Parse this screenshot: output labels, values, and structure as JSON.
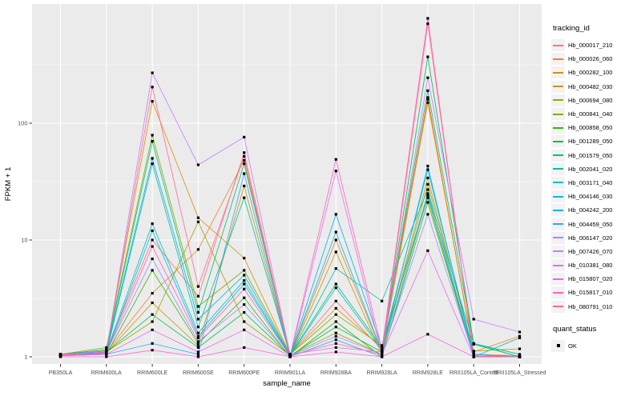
{
  "chart_data": {
    "type": "line",
    "title": "",
    "xlabel": "sample_name",
    "ylabel": "FPKM + 1",
    "yscale": "log10",
    "ylim": [
      0.9,
      1100
    ],
    "yticks": [
      1,
      10,
      100
    ],
    "ytick_labels": [
      "1",
      "10",
      "100"
    ],
    "grid": true,
    "legend_position": "right",
    "legend_title": "tracking_id",
    "quant_legend": {
      "title": "quant_status",
      "item_label": "OK"
    },
    "panel_bg": "#EBEBEB",
    "grid_color": "#FFFFFF",
    "point_color": "#000000",
    "axis_text_color": "#4D4D4D",
    "x_categories": [
      "PB350LA",
      "RRIM600LA",
      "RRIM600LE",
      "RRIM600SE",
      "RRIM600PE",
      "RRIM901LA",
      "RRIM928BA",
      "RRIM928LA",
      "RRIM928LE",
      "RRII105LA_Control",
      "RRII105LA_Stressed"
    ],
    "series": [
      {
        "id": "Hb_000017_210",
        "color": "#F8766D",
        "values": [
          1.05,
          1.12,
          10,
          3.3,
          56,
          1.05,
          3.0,
          1.15,
          166,
          1.05,
          1.0
        ]
      },
      {
        "id": "Hb_000026_060",
        "color": "#EA8331",
        "values": [
          1.02,
          1.1,
          3.5,
          8.3,
          48,
          1.02,
          10,
          1.1,
          150,
          1.1,
          1.5
        ]
      },
      {
        "id": "Hb_000282_100",
        "color": "#D89000",
        "values": [
          1.05,
          1.15,
          154,
          15.5,
          7.0,
          1.05,
          2.6,
          1.2,
          160,
          1.05,
          1.02
        ]
      },
      {
        "id": "Hb_000482_030",
        "color": "#C09B00",
        "values": [
          1.03,
          1.08,
          2.9,
          1.25,
          29,
          1.02,
          7.9,
          1.05,
          34,
          1.02,
          1.0
        ]
      },
      {
        "id": "Hb_000694_080",
        "color": "#A3A500",
        "values": [
          1.04,
          1.1,
          2.0,
          14.3,
          2.0,
          1.03,
          1.6,
          1.05,
          30,
          1.12,
          1.17
        ]
      },
      {
        "id": "Hb_000841_040",
        "color": "#7CAE00",
        "values": [
          1.05,
          1.2,
          79,
          2.7,
          5.5,
          1.05,
          2.3,
          1.25,
          23,
          1.0,
          1.0
        ]
      },
      {
        "id": "Hb_000858_050",
        "color": "#39B600",
        "values": [
          1.02,
          1.05,
          5.5,
          1.3,
          3.2,
          1.0,
          2.0,
          1.0,
          21,
          1.0,
          1.0
        ]
      },
      {
        "id": "Hb_001289_050",
        "color": "#00BB4E",
        "values": [
          1.03,
          1.1,
          2.3,
          1.2,
          2.4,
          1.02,
          1.8,
          1.1,
          370,
          1.3,
          1.05
        ]
      },
      {
        "id": "Hb_001579_050",
        "color": "#00BF7D",
        "values": [
          1.05,
          1.15,
          70,
          2.4,
          45,
          1.04,
          4.2,
          1.2,
          190,
          1.28,
          1.0
        ]
      },
      {
        "id": "Hb_002041_020",
        "color": "#00C1A3",
        "values": [
          1.02,
          1.08,
          45,
          1.8,
          23,
          1.03,
          5.7,
          3.0,
          27,
          1.0,
          1.45
        ]
      },
      {
        "id": "Hb_003171_040",
        "color": "#00BFC4",
        "values": [
          1.03,
          1.1,
          13.8,
          1.6,
          4.5,
          1.02,
          3.9,
          1.15,
          25,
          1.3,
          1.0
        ]
      },
      {
        "id": "Hb_004146_030",
        "color": "#00BAE0",
        "values": [
          1.02,
          1.07,
          12,
          1.5,
          4.2,
          1.02,
          11.7,
          1.1,
          43,
          1.0,
          1.0
        ]
      },
      {
        "id": "Hb_004242_200",
        "color": "#00B0F6",
        "values": [
          1.04,
          1.12,
          50,
          2.1,
          5.0,
          1.03,
          16.6,
          1.2,
          40,
          1.05,
          1.0
        ]
      },
      {
        "id": "Hb_004459_050",
        "color": "#35A2FF",
        "values": [
          1.02,
          1.05,
          1.3,
          1.05,
          37,
          1.0,
          1.4,
          1.0,
          24,
          1.0,
          1.0
        ]
      },
      {
        "id": "Hb_006147_020",
        "color": "#9590FF",
        "values": [
          1.04,
          1.1,
          6.9,
          1.35,
          2.8,
          1.02,
          1.5,
          1.05,
          16.6,
          1.02,
          1.0
        ]
      },
      {
        "id": "Hb_007426_070",
        "color": "#C77CFF",
        "values": [
          1.05,
          1.1,
          270,
          44,
          76,
          1.05,
          1.2,
          1.1,
          245,
          2.1,
          1.63
        ]
      },
      {
        "id": "Hb_010381_080",
        "color": "#E76BF3",
        "values": [
          1.02,
          1.05,
          1.7,
          1.1,
          1.7,
          1.0,
          39,
          1.05,
          8.1,
          1.0,
          1.0
        ]
      },
      {
        "id": "Hb_015807_020",
        "color": "#FA62DB",
        "values": [
          1.0,
          1.0,
          1.14,
          1.0,
          1.2,
          1.0,
          1.1,
          1.0,
          1.56,
          1.0,
          1.0
        ]
      },
      {
        "id": "Hb_015817_010",
        "color": "#FF62BC",
        "values": [
          1.03,
          1.08,
          8.8,
          1.45,
          3.8,
          1.02,
          49,
          1.15,
          790,
          1.0,
          1.0
        ]
      },
      {
        "id": "Hb_080791_010",
        "color": "#FF6A98",
        "values": [
          1.04,
          1.1,
          204,
          4.0,
          52,
          1.03,
          1.3,
          1.05,
          710,
          1.02,
          1.0
        ]
      }
    ]
  }
}
